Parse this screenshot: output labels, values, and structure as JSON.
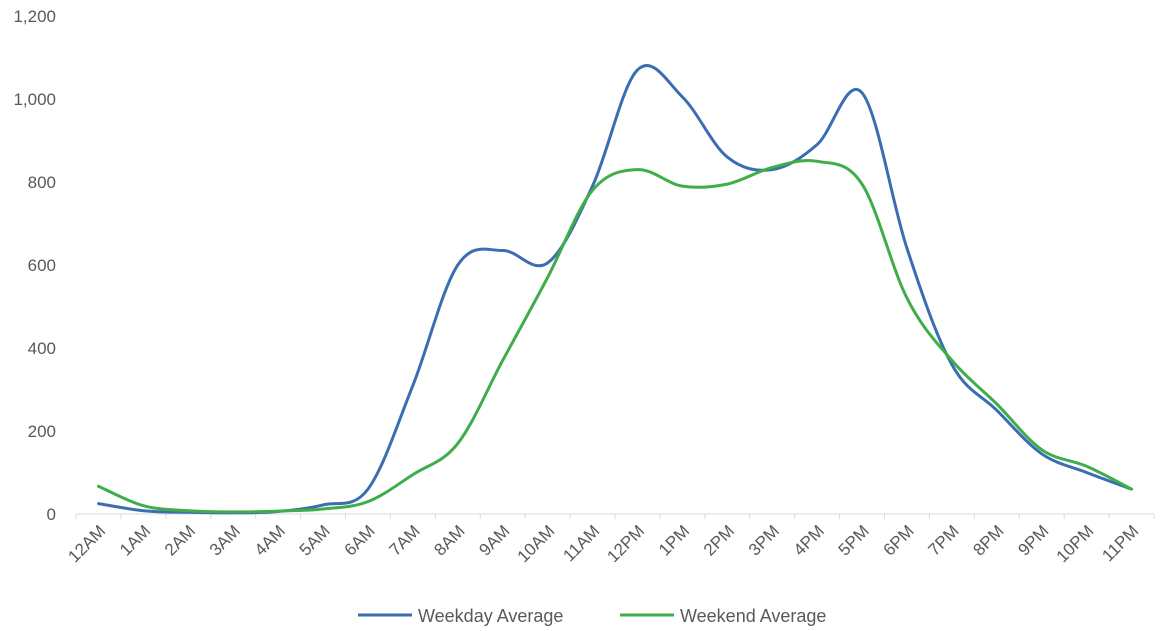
{
  "chart_data": {
    "type": "line",
    "title": "",
    "xlabel": "",
    "ylabel": "",
    "categories": [
      "12AM",
      "1AM",
      "2AM",
      "3AM",
      "4AM",
      "5AM",
      "6AM",
      "7AM",
      "8AM",
      "9AM",
      "10AM",
      "11AM",
      "12PM",
      "1PM",
      "2PM",
      "3PM",
      "4PM",
      "5PM",
      "6PM",
      "7PM",
      "8PM",
      "9PM",
      "10PM",
      "11PM"
    ],
    "y_ticks": [
      "0",
      "200",
      "400",
      "600",
      "800",
      "1,000",
      "1,200"
    ],
    "ylim": [
      0,
      1200
    ],
    "grid": false,
    "legend_position": "bottom",
    "series": [
      {
        "name": "Weekday Average",
        "color": "#3A6EB1",
        "values": [
          25,
          8,
          4,
          3,
          6,
          22,
          60,
          310,
          600,
          635,
          605,
          790,
          1070,
          1005,
          860,
          830,
          890,
          1015,
          640,
          360,
          250,
          145,
          100,
          60
        ]
      },
      {
        "name": "Weekend Average",
        "color": "#3FAE49",
        "values": [
          67,
          20,
          8,
          5,
          7,
          12,
          30,
          95,
          170,
          370,
          570,
          780,
          830,
          790,
          795,
          835,
          850,
          795,
          520,
          370,
          265,
          155,
          115,
          60
        ]
      }
    ]
  }
}
